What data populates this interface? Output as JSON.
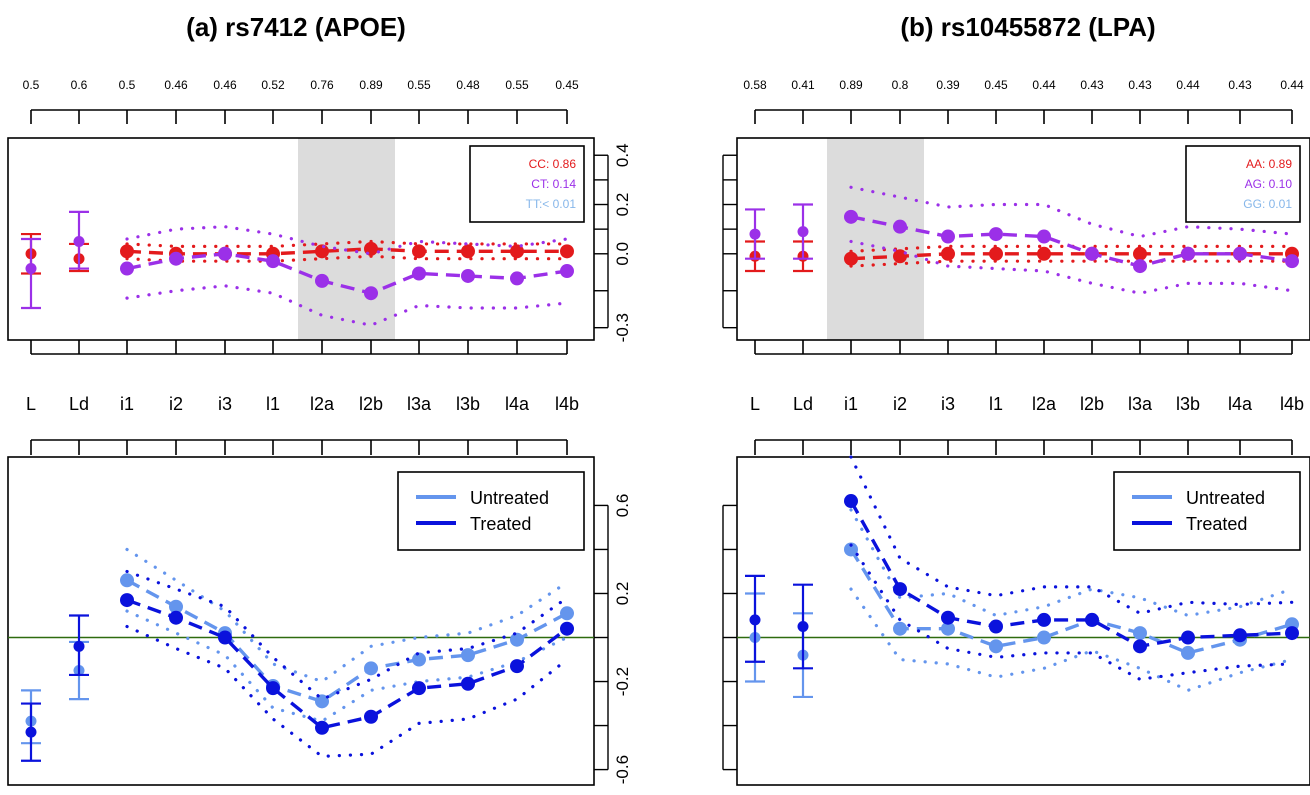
{
  "colors": {
    "red": "#e31a1c",
    "purple": "#9b30e8",
    "lightblue": "#87b7ea",
    "cornflower": "#6495ed",
    "blue": "#0a12dc",
    "shade": "#dcdcdc",
    "zero_line": "#2e6b0f"
  },
  "chart_data": [
    {
      "panel": "a",
      "title": "(a) rs7412 (APOE)",
      "categories": [
        "L",
        "Ld",
        "i1",
        "i2",
        "i3",
        "l1",
        "l2a",
        "l2b",
        "l3a",
        "l3b",
        "l4a",
        "l4b"
      ],
      "top_values": [
        "0.5",
        "0.6",
        "0.5",
        "0.46",
        "0.46",
        "0.52",
        "0.76",
        "0.89",
        "0.55",
        "0.48",
        "0.55",
        "0.45"
      ],
      "genotype_plot": {
        "type": "line",
        "ylim": [
          -0.35,
          0.47
        ],
        "yticks": [
          "-0.3",
          "0.0",
          "0.2",
          "0.4"
        ],
        "ytick_values": [
          -0.3,
          0.0,
          0.2,
          0.4
        ],
        "shaded": [
          "l2a",
          "l2b"
        ],
        "legend": [
          {
            "label": "CC: 0.86",
            "color": "red"
          },
          {
            "label": "CT: 0.14",
            "color": "purple"
          },
          {
            "label": "TT:< 0.01",
            "color": "lightblue"
          }
        ],
        "series": [
          {
            "name": "CC",
            "color": "red",
            "values": [
              0.0,
              -0.02,
              0.01,
              0.0,
              0.0,
              0.0,
              0.01,
              0.02,
              0.01,
              0.01,
              0.01,
              0.01
            ],
            "lower": [
              -0.08,
              -0.07,
              -0.02,
              -0.03,
              -0.03,
              -0.03,
              -0.02,
              -0.01,
              -0.02,
              -0.02,
              -0.02,
              -0.02
            ],
            "upper": [
              0.08,
              0.04,
              0.04,
              0.03,
              0.03,
              0.03,
              0.04,
              0.05,
              0.04,
              0.04,
              0.04,
              0.04
            ]
          },
          {
            "name": "CT",
            "color": "purple",
            "values": [
              -0.06,
              0.05,
              -0.06,
              -0.02,
              0.0,
              -0.03,
              -0.11,
              -0.16,
              -0.08,
              -0.09,
              -0.1,
              -0.07
            ],
            "lower": [
              -0.22,
              -0.06,
              -0.18,
              -0.15,
              -0.13,
              -0.16,
              -0.25,
              -0.29,
              -0.21,
              -0.22,
              -0.22,
              -0.2
            ],
            "upper": [
              0.06,
              0.17,
              0.06,
              0.1,
              0.11,
              0.08,
              0.03,
              0.0,
              0.05,
              0.04,
              0.03,
              0.06
            ]
          }
        ]
      },
      "treatment_plot": {
        "type": "line",
        "ylim": [
          -0.67,
          0.82
        ],
        "yticks": [
          "-0.6",
          "-0.2",
          "0.2",
          "0.6"
        ],
        "ytick_values": [
          -0.6,
          -0.2,
          0.2,
          0.6
        ],
        "legend": [
          {
            "label": "Untreated",
            "color": "cornflower"
          },
          {
            "label": "Treated",
            "color": "blue"
          }
        ],
        "series": [
          {
            "name": "Untreated",
            "color": "cornflower",
            "values": [
              -0.38,
              -0.15,
              0.26,
              0.14,
              0.02,
              -0.22,
              -0.29,
              -0.14,
              -0.1,
              -0.08,
              -0.01,
              0.11
            ],
            "lower": [
              -0.48,
              -0.28,
              0.12,
              0.02,
              -0.08,
              -0.32,
              -0.38,
              -0.24,
              -0.2,
              -0.18,
              -0.11,
              0.0
            ],
            "upper": [
              -0.24,
              -0.02,
              0.4,
              0.26,
              0.12,
              -0.12,
              -0.2,
              -0.04,
              0.0,
              0.02,
              0.1,
              0.25
            ]
          },
          {
            "name": "Treated",
            "color": "blue",
            "values": [
              -0.43,
              -0.04,
              0.17,
              0.09,
              0.0,
              -0.23,
              -0.41,
              -0.36,
              -0.23,
              -0.21,
              -0.13,
              0.04
            ],
            "lower": [
              -0.56,
              -0.17,
              0.05,
              -0.05,
              -0.14,
              -0.37,
              -0.54,
              -0.53,
              -0.39,
              -0.37,
              -0.28,
              -0.1
            ],
            "upper": [
              -0.3,
              0.1,
              0.3,
              0.22,
              0.14,
              -0.09,
              -0.28,
              -0.19,
              -0.07,
              -0.05,
              0.02,
              0.18
            ]
          }
        ]
      }
    },
    {
      "panel": "b",
      "title": "(b) rs10455872 (LPA)",
      "categories": [
        "L",
        "Ld",
        "i1",
        "i2",
        "i3",
        "l1",
        "l2a",
        "l2b",
        "l3a",
        "l3b",
        "l4a",
        "l4b"
      ],
      "top_values": [
        "0.58",
        "0.41",
        "0.89",
        "0.8",
        "0.39",
        "0.45",
        "0.44",
        "0.43",
        "0.43",
        "0.44",
        "0.43",
        "0.44"
      ],
      "genotype_plot": {
        "type": "line",
        "ylim": [
          -0.35,
          0.47
        ],
        "shaded": [
          "i1",
          "i2"
        ],
        "legend": [
          {
            "label": "AA: 0.89",
            "color": "red"
          },
          {
            "label": "AG: 0.10",
            "color": "purple"
          },
          {
            "label": "GG: 0.01",
            "color": "lightblue"
          }
        ],
        "series": [
          {
            "name": "AA",
            "color": "red",
            "values": [
              -0.01,
              -0.01,
              -0.02,
              -0.01,
              0.0,
              0.0,
              0.0,
              0.0,
              0.0,
              0.0,
              0.0,
              0.0
            ],
            "lower": [
              -0.07,
              -0.07,
              -0.05,
              -0.04,
              -0.03,
              -0.03,
              -0.03,
              -0.03,
              -0.03,
              -0.03,
              -0.03,
              -0.03
            ],
            "upper": [
              0.05,
              0.05,
              0.01,
              0.02,
              0.03,
              0.03,
              0.03,
              0.03,
              0.03,
              0.03,
              0.03,
              0.03
            ]
          },
          {
            "name": "AG",
            "color": "purple",
            "values": [
              0.08,
              0.09,
              0.15,
              0.11,
              0.07,
              0.08,
              0.07,
              0.0,
              -0.05,
              0.0,
              0.0,
              -0.03
            ],
            "lower": [
              -0.02,
              -0.02,
              0.05,
              0.01,
              -0.05,
              -0.06,
              -0.07,
              -0.12,
              -0.16,
              -0.12,
              -0.12,
              -0.15
            ],
            "upper": [
              0.18,
              0.2,
              0.27,
              0.23,
              0.19,
              0.2,
              0.2,
              0.12,
              0.07,
              0.11,
              0.1,
              0.08
            ]
          }
        ]
      },
      "treatment_plot": {
        "type": "line",
        "ylim": [
          -0.67,
          0.82
        ],
        "legend": [
          {
            "label": "Untreated",
            "color": "cornflower"
          },
          {
            "label": "Treated",
            "color": "blue"
          }
        ],
        "series": [
          {
            "name": "Untreated",
            "color": "cornflower",
            "values": [
              0.0,
              -0.08,
              0.4,
              0.04,
              0.04,
              -0.04,
              0.0,
              0.08,
              0.02,
              -0.07,
              -0.01,
              0.06
            ],
            "lower": [
              -0.2,
              -0.27,
              0.22,
              -0.1,
              -0.12,
              -0.18,
              -0.14,
              -0.06,
              -0.14,
              -0.24,
              -0.16,
              -0.1
            ],
            "upper": [
              0.2,
              0.11,
              0.58,
              0.18,
              0.2,
              0.1,
              0.14,
              0.22,
              0.18,
              0.1,
              0.14,
              0.22
            ]
          },
          {
            "name": "Treated",
            "color": "blue",
            "values": [
              0.08,
              0.05,
              0.62,
              0.22,
              0.09,
              0.05,
              0.08,
              0.08,
              -0.04,
              0.0,
              0.01,
              0.02
            ],
            "lower": [
              -0.11,
              -0.14,
              0.42,
              0.08,
              -0.05,
              -0.09,
              -0.07,
              -0.07,
              -0.19,
              -0.16,
              -0.13,
              -0.12
            ],
            "upper": [
              0.28,
              0.24,
              0.82,
              0.36,
              0.23,
              0.19,
              0.23,
              0.23,
              0.11,
              0.16,
              0.15,
              0.16
            ]
          }
        ]
      }
    }
  ]
}
